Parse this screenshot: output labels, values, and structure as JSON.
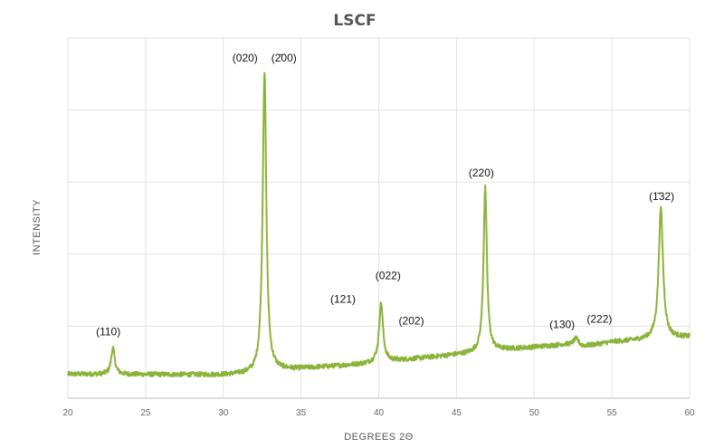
{
  "chart_data": {
    "type": "line",
    "title": "LSCF",
    "xlabel": "DEGREES 2Θ",
    "ylabel": "INTENSITY",
    "xlim": [
      20,
      60
    ],
    "ylim": [
      0,
      100
    ],
    "x_ticks": [
      20,
      25,
      30,
      35,
      40,
      45,
      50,
      55,
      60
    ],
    "y_tick_labels_shown": false,
    "grid": true,
    "legend": "none",
    "series": [
      {
        "color": "#8ab33a",
        "baseline": [
          [
            20,
            6.7
          ],
          [
            30,
            6.5
          ],
          [
            32,
            6.8
          ],
          [
            33,
            7.6
          ],
          [
            39,
            9.5
          ],
          [
            40,
            10.0
          ],
          [
            46,
            12.5
          ],
          [
            47,
            13.1
          ],
          [
            52,
            14.9
          ],
          [
            53,
            14.2
          ],
          [
            55,
            15.6
          ],
          [
            57,
            16.2
          ],
          [
            58,
            16.5
          ],
          [
            60,
            17.0
          ]
        ],
        "peaks": [
          {
            "x": 22.9,
            "y": 14.0,
            "width": 0.14
          },
          {
            "x": 32.65,
            "y": 90.5,
            "width": 0.14
          },
          {
            "x": 40.15,
            "y": 26.5,
            "width": 0.15
          },
          {
            "x": 46.85,
            "y": 58.5,
            "width": 0.13
          },
          {
            "x": 52.7,
            "y": 16.5,
            "width": 0.22
          },
          {
            "x": 58.15,
            "y": 52.5,
            "width": 0.17
          }
        ]
      }
    ],
    "peak_labels": [
      {
        "text": "(110)",
        "x": 22.6,
        "y": 17.5
      },
      {
        "text": "(020)",
        "x": 31.4,
        "y": 93.5
      },
      {
        "text": "(2̄00)",
        "x": 33.9,
        "y": 93.5
      },
      {
        "text": "(121)",
        "x": 37.7,
        "y": 26.5
      },
      {
        "text": "(022)",
        "x": 40.6,
        "y": 33.0
      },
      {
        "text": "(202)",
        "x": 42.1,
        "y": 20.5
      },
      {
        "text": "(220)",
        "x": 46.6,
        "y": 61.5
      },
      {
        "text": "(130)",
        "x": 51.8,
        "y": 19.5
      },
      {
        "text": "(222)",
        "x": 54.2,
        "y": 21.0
      },
      {
        "text": "(1̄32)",
        "x": 58.2,
        "y": 55.0
      }
    ]
  }
}
